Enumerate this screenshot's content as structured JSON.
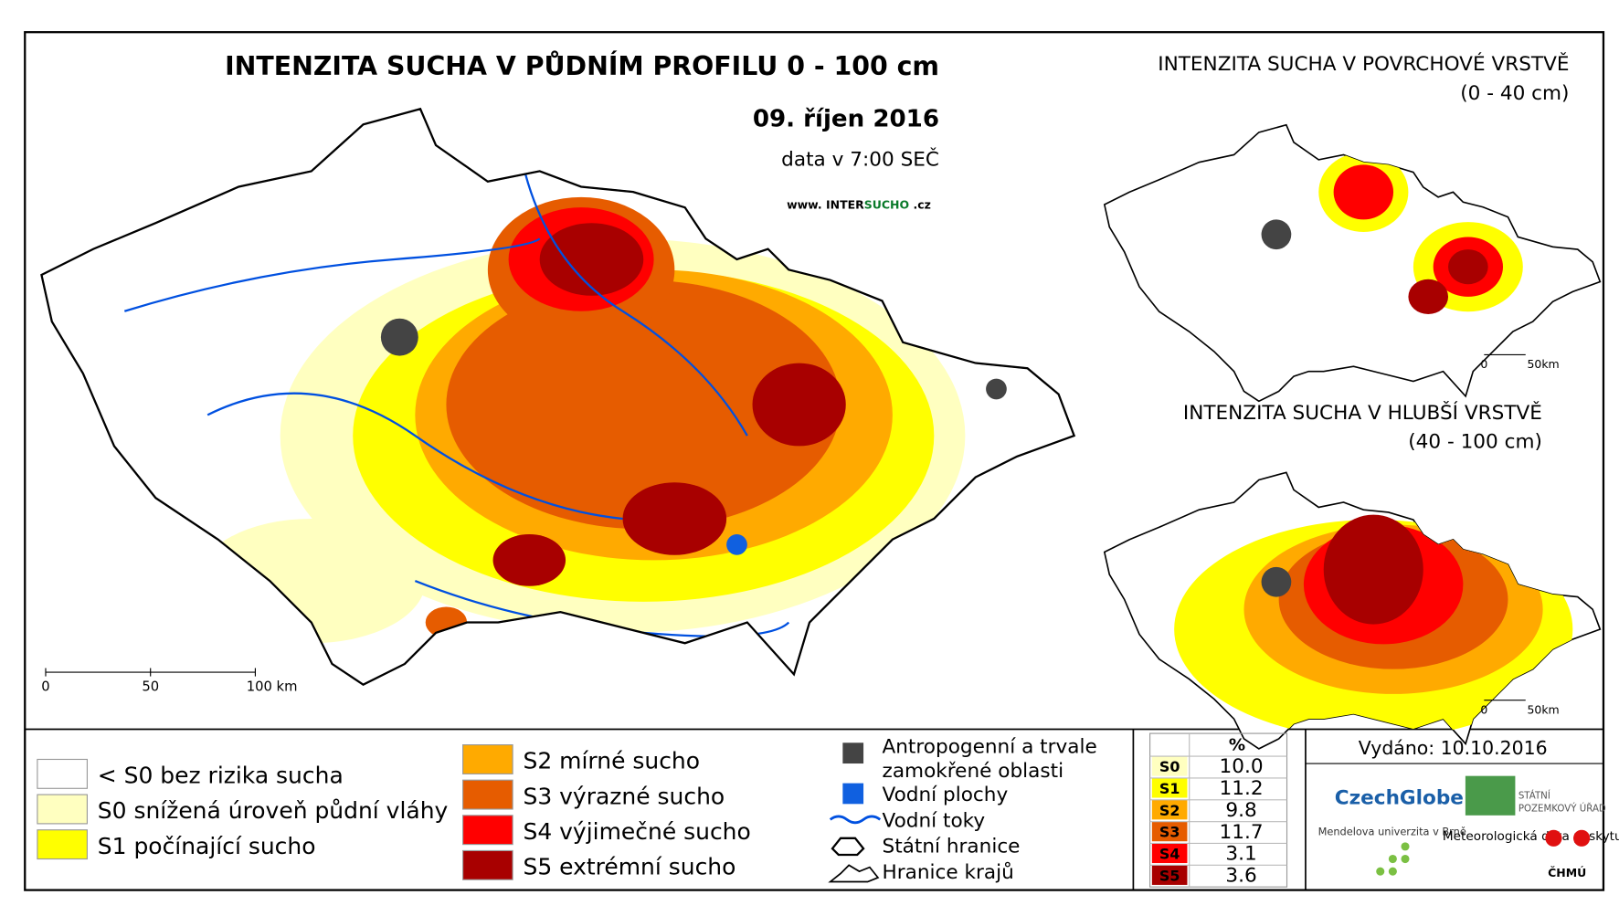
{
  "main_map": {
    "title": "INTENZITA SUCHA V PŮDNÍM PROFILU 0 - 100 cm",
    "date": "09. říjen 2016",
    "time_note": "data v 7:00 SEČ",
    "website_prefix": "www. INTER",
    "website_highlight": "SUCHO",
    "website_suffix": " .cz",
    "scale_labels": [
      "0",
      "50",
      "100 km"
    ]
  },
  "inset_maps": [
    {
      "title": "INTENZITA SUCHA V POVRCHOVÉ VRSTVĚ",
      "subtitle": "(0 - 40 cm)",
      "scale_labels": [
        "0",
        "50km"
      ]
    },
    {
      "title": "INTENZITA SUCHA V HLUBŠÍ VRSTVĚ",
      "subtitle": "(40 - 100 cm)",
      "scale_labels": [
        "0",
        "50km"
      ]
    }
  ],
  "legend": {
    "classes": [
      {
        "label": "< S0 bez rizika sucha",
        "color": "#ffffff"
      },
      {
        "label": "S0 snížená úroveň půdní vláhy",
        "color": "#ffffc0"
      },
      {
        "label": "S1 počínající sucho",
        "color": "#ffff00"
      },
      {
        "label": "S2 mírné sucho",
        "color": "#ffaa00"
      },
      {
        "label": "S3 výrazné sucho",
        "color": "#e65c00"
      },
      {
        "label": "S4 výjimečné sucho",
        "color": "#ff0000"
      },
      {
        "label": "S5 extrémní sucho",
        "color": "#a80000"
      }
    ],
    "features": [
      "Antropogenní a trvale zamokřené oblasti",
      "Vodní plochy",
      "Vodní toky",
      "Státní hranice",
      "Hranice krajů"
    ]
  },
  "table": {
    "header": "%",
    "rows": [
      {
        "code": "S0",
        "percent": "10.0",
        "color": "#ffffc0"
      },
      {
        "code": "S1",
        "percent": "11.2",
        "color": "#ffff00"
      },
      {
        "code": "S2",
        "percent": "9.8",
        "color": "#ffaa00"
      },
      {
        "code": "S3",
        "percent": "11.7",
        "color": "#e65c00"
      },
      {
        "code": "S4",
        "percent": "3.1",
        "color": "#ff0000"
      },
      {
        "code": "S5",
        "percent": "3.6",
        "color": "#a80000"
      }
    ]
  },
  "footer": {
    "issued": "Vydáno: 10.10.2016",
    "logo_czechglobe": "CzechGlobe",
    "logo_spu_1": "STÁTNÍ",
    "logo_spu_2": "POZEMKOVÝ ÚŘAD",
    "logo_mendel": "Mendelova univerzita v Brně",
    "provider": "Meteorologická data poskytuje:",
    "logo_chmu": "ČHMÚ"
  }
}
